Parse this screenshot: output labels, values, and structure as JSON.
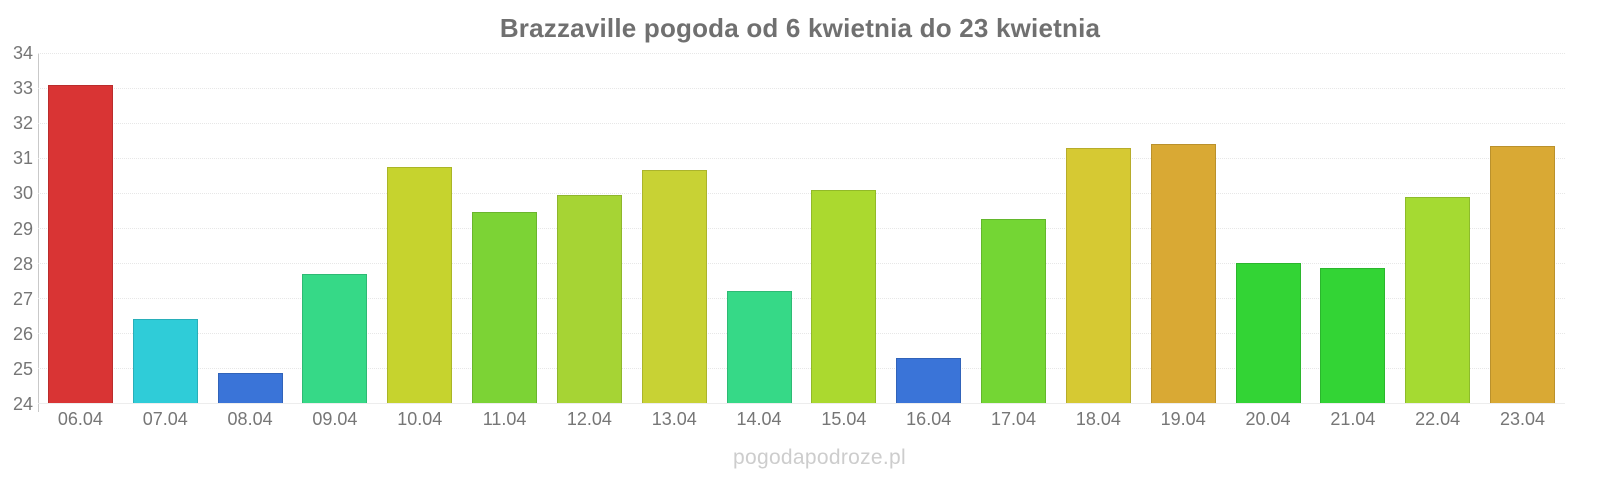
{
  "title": "Brazzaville pogoda od 6 kwietnia do 23 kwietnia",
  "watermark": "pogodapodroze.pl",
  "chart_data": {
    "type": "bar",
    "title": "Brazzaville pogoda od 6 kwietnia do 23 kwietnia",
    "categories": [
      "06.04",
      "07.04",
      "08.04",
      "09.04",
      "10.04",
      "11.04",
      "12.04",
      "13.04",
      "14.04",
      "15.04",
      "16.04",
      "17.04",
      "18.04",
      "19.04",
      "20.04",
      "21.04",
      "22.04",
      "23.04"
    ],
    "values": [
      33.1,
      26.4,
      24.85,
      27.7,
      30.75,
      29.45,
      29.95,
      30.65,
      27.2,
      30.1,
      25.3,
      29.25,
      31.3,
      31.4,
      28.0,
      27.85,
      29.9,
      31.35
    ],
    "bar_colors": [
      "#d93434",
      "#2fccd8",
      "#3a74d8",
      "#36d987",
      "#c6d32e",
      "#7cd335",
      "#a6d434",
      "#c8d234",
      "#36d987",
      "#abd92f",
      "#3a74d8",
      "#74d634",
      "#d6c933",
      "#d9a934",
      "#33d435",
      "#33d435",
      "#a5da32",
      "#d9a934"
    ],
    "xlabel": "",
    "ylabel": "",
    "ylim": [
      24,
      34
    ],
    "yticks": [
      24,
      25,
      26,
      27,
      28,
      29,
      30,
      31,
      32,
      33,
      34
    ],
    "grid": true,
    "legend": false
  },
  "colors": {
    "title_text": "#707070",
    "axis_text": "#767676",
    "grid_line": "#e7e7e7",
    "axis_line": "#c9c9c9",
    "watermark_text": "#cdcdcd",
    "background": "#ffffff"
  }
}
